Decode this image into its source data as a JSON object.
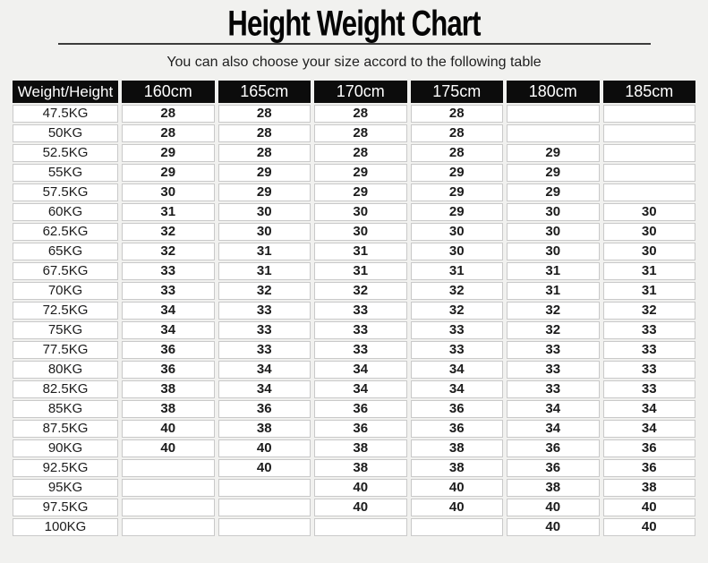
{
  "page": {
    "title": "Height Weight Chart",
    "subtitle": "You can also choose your size accord to the following table"
  },
  "colors": {
    "page_background": "#f1f1ef",
    "header_background": "#0c0c0c",
    "header_text": "#ffffff",
    "cell_background": "#ffffff",
    "cell_border": "#c9c9c9",
    "body_text": "#1c1c1c",
    "divider": "#3c3c3c"
  },
  "chart_data": {
    "type": "table",
    "title": "Height Weight Chart",
    "subtitle": "You can also choose your size accord to the following table",
    "columns": [
      "Weight/Height",
      "160cm",
      "165cm",
      "170cm",
      "175cm",
      "180cm",
      "185cm"
    ],
    "rows": [
      [
        "47.5KG",
        "28",
        "28",
        "28",
        "28",
        "",
        ""
      ],
      [
        "50KG",
        "28",
        "28",
        "28",
        "28",
        "",
        ""
      ],
      [
        "52.5KG",
        "29",
        "28",
        "28",
        "28",
        "29",
        ""
      ],
      [
        "55KG",
        "29",
        "29",
        "29",
        "29",
        "29",
        ""
      ],
      [
        "57.5KG",
        "30",
        "29",
        "29",
        "29",
        "29",
        ""
      ],
      [
        "60KG",
        "31",
        "30",
        "30",
        "29",
        "30",
        "30"
      ],
      [
        "62.5KG",
        "32",
        "30",
        "30",
        "30",
        "30",
        "30"
      ],
      [
        "65KG",
        "32",
        "31",
        "31",
        "30",
        "30",
        "30"
      ],
      [
        "67.5KG",
        "33",
        "31",
        "31",
        "31",
        "31",
        "31"
      ],
      [
        "70KG",
        "33",
        "32",
        "32",
        "32",
        "31",
        "31"
      ],
      [
        "72.5KG",
        "34",
        "33",
        "33",
        "32",
        "32",
        "32"
      ],
      [
        "75KG",
        "34",
        "33",
        "33",
        "33",
        "32",
        "33"
      ],
      [
        "77.5KG",
        "36",
        "33",
        "33",
        "33",
        "33",
        "33"
      ],
      [
        "80KG",
        "36",
        "34",
        "34",
        "34",
        "33",
        "33"
      ],
      [
        "82.5KG",
        "38",
        "34",
        "34",
        "34",
        "33",
        "33"
      ],
      [
        "85KG",
        "38",
        "36",
        "36",
        "36",
        "34",
        "34"
      ],
      [
        "87.5KG",
        "40",
        "38",
        "36",
        "36",
        "34",
        "34"
      ],
      [
        "90KG",
        "40",
        "40",
        "38",
        "38",
        "36",
        "36"
      ],
      [
        "92.5KG",
        "",
        "40",
        "38",
        "38",
        "36",
        "36"
      ],
      [
        "95KG",
        "",
        "",
        "40",
        "40",
        "38",
        "38"
      ],
      [
        "97.5KG",
        "",
        "",
        "40",
        "40",
        "40",
        "40"
      ],
      [
        "100KG",
        "",
        "",
        "",
        "",
        "40",
        "40"
      ]
    ]
  }
}
